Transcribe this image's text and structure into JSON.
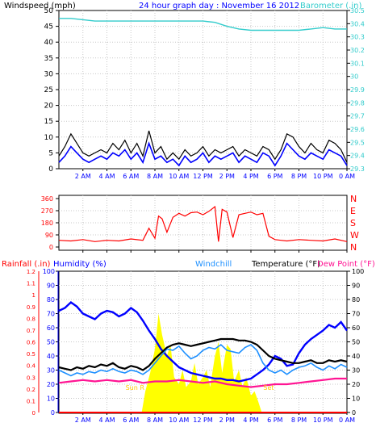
{
  "top": {
    "left_label": "Windspeed (mph)",
    "center_label": "24 hour graph day : November 16 2012",
    "right_label": "Barometer (.in)",
    "y_ticks": [
      "0",
      "5",
      "10",
      "15",
      "20",
      "25",
      "30",
      "35",
      "40",
      "45",
      "50"
    ],
    "y2_ticks": [
      "29.3",
      "29.4",
      "29.5",
      "29.6",
      "29.7",
      "29.8",
      "29.9",
      "30",
      "30.1",
      "30.2",
      "30.3",
      "30.4",
      "30.5"
    ]
  },
  "direction": {
    "y_ticks": [
      "0",
      "90",
      "180",
      "270",
      "360"
    ],
    "compass": [
      "N",
      "W",
      "S",
      "E",
      "N"
    ]
  },
  "bottom": {
    "rain_label": "Rainfall (.in)",
    "humidity_label": "Humidity (%)",
    "windchill_label": "Windchill",
    "temperature_label": "Temperature (°F)",
    "dewpoint_label": "Dew Point (°F)",
    "rain_ticks": [
      "0",
      "0.1",
      "0.2",
      "0.3",
      "0.4",
      "0.5",
      "0.6",
      "0.7",
      "0.8",
      "0.9",
      "1",
      "1.1",
      "1.2"
    ],
    "humidity_ticks": [
      "0",
      "10",
      "20",
      "30",
      "40",
      "50",
      "60",
      "70",
      "80",
      "90",
      "100"
    ],
    "temp_ticks": [
      "0",
      "10",
      "20",
      "30",
      "40",
      "50",
      "60",
      "70",
      "80",
      "90",
      "100"
    ],
    "sunrise_label": "Sun R",
    "sunset_label": "Set"
  },
  "x_tick_labels": [
    "2 AM",
    "4 AM",
    "6 AM",
    "8 AM",
    "10 AM",
    "12 PM",
    "2 PM",
    "4 PM",
    "6 PM",
    "8 PM",
    "10 PM",
    "0 AM"
  ],
  "colors": {
    "barometer": "#33cccc",
    "wind_avg": "#0000ff",
    "wind_gust": "#000000",
    "direction": "#ff0000",
    "rain": "#ff0000",
    "humidity": "#0000ff",
    "windchill": "#1e90ff",
    "temperature": "#000000",
    "dewpoint": "#ff1493",
    "solar": "#ffff00",
    "text": "#0000ff"
  },
  "chart_data": [
    {
      "type": "line",
      "title": "24 hour graph day : November 16 2012",
      "ylabel": "Windspeed (mph)",
      "y2label": "Barometer (.in)",
      "xlim": [
        0,
        24
      ],
      "ylim": [
        0,
        50
      ],
      "y2lim": [
        29.3,
        30.5
      ],
      "series": [
        {
          "name": "Barometer",
          "axis": "right",
          "x": [
            0,
            1,
            2,
            3,
            4,
            5,
            6,
            7,
            8,
            9,
            10,
            11,
            12,
            13,
            14,
            15,
            16,
            17,
            18,
            19,
            20,
            21,
            22,
            23,
            24
          ],
          "values": [
            30.44,
            30.44,
            30.43,
            30.42,
            30.42,
            30.42,
            30.42,
            30.42,
            30.42,
            30.42,
            30.42,
            30.42,
            30.42,
            30.41,
            30.38,
            30.36,
            30.35,
            30.35,
            30.35,
            30.35,
            30.35,
            30.36,
            30.37,
            30.36,
            30.36
          ]
        },
        {
          "name": "Wind average",
          "axis": "left",
          "x": [
            0,
            0.5,
            1,
            1.5,
            2,
            2.5,
            3,
            3.5,
            4,
            4.5,
            5,
            5.5,
            6,
            6.5,
            7,
            7.5,
            8,
            8.5,
            9,
            9.5,
            10,
            10.5,
            11,
            11.5,
            12,
            12.5,
            13,
            13.5,
            14,
            14.5,
            15,
            15.5,
            16,
            16.5,
            17,
            17.5,
            18,
            18.5,
            19,
            19.5,
            20,
            20.5,
            21,
            21.5,
            22,
            22.5,
            23,
            23.5,
            24
          ],
          "values": [
            2,
            4,
            7,
            5,
            3,
            2,
            3,
            4,
            3,
            5,
            4,
            6,
            3,
            5,
            2,
            8,
            3,
            4,
            2,
            3,
            1,
            4,
            2,
            3,
            5,
            2,
            4,
            3,
            4,
            5,
            2,
            4,
            3,
            2,
            5,
            4,
            1,
            4,
            8,
            6,
            4,
            3,
            5,
            4,
            3,
            6,
            5,
            4,
            1
          ]
        },
        {
          "name": "Wind gust",
          "axis": "left",
          "x": [
            0,
            0.5,
            1,
            1.5,
            2,
            2.5,
            3,
            3.5,
            4,
            4.5,
            5,
            5.5,
            6,
            6.5,
            7,
            7.5,
            8,
            8.5,
            9,
            9.5,
            10,
            10.5,
            11,
            11.5,
            12,
            12.5,
            13,
            13.5,
            14,
            14.5,
            15,
            15.5,
            16,
            16.5,
            17,
            17.5,
            18,
            18.5,
            19,
            19.5,
            20,
            20.5,
            21,
            21.5,
            22,
            22.5,
            23,
            23.5,
            24
          ],
          "values": [
            4,
            7,
            11,
            8,
            5,
            4,
            5,
            6,
            5,
            8,
            6,
            9,
            5,
            8,
            4,
            12,
            5,
            7,
            3,
            5,
            3,
            6,
            4,
            5,
            7,
            4,
            6,
            5,
            6,
            7,
            4,
            6,
            5,
            4,
            7,
            6,
            3,
            6,
            11,
            10,
            7,
            5,
            8,
            6,
            5,
            9,
            8,
            6,
            2
          ]
        }
      ]
    },
    {
      "type": "line",
      "ylabel": "Wind direction",
      "xlim": [
        0,
        24
      ],
      "ylim": [
        0,
        360
      ],
      "series": [
        {
          "name": "Direction",
          "x": [
            0,
            1,
            2,
            3,
            4,
            5,
            6,
            7,
            7.5,
            8,
            8.3,
            8.6,
            9,
            9.5,
            10,
            10.5,
            11,
            11.5,
            12,
            12.5,
            13,
            13.3,
            13.6,
            14,
            14.5,
            15,
            15.5,
            16,
            16.5,
            17,
            17.5,
            18,
            18.5,
            19,
            20,
            21,
            22,
            23,
            24
          ],
          "values": [
            50,
            45,
            55,
            40,
            50,
            45,
            60,
            50,
            140,
            65,
            230,
            210,
            110,
            220,
            250,
            230,
            255,
            260,
            240,
            265,
            300,
            40,
            280,
            260,
            70,
            240,
            250,
            260,
            240,
            250,
            80,
            55,
            50,
            45,
            55,
            50,
            45,
            60,
            40
          ]
        }
      ]
    },
    {
      "type": "line",
      "ylabel": "Temperature (°F)",
      "xlim": [
        0,
        24
      ],
      "ylim": [
        0,
        100
      ],
      "series": [
        {
          "name": "Humidity",
          "x": [
            0,
            0.5,
            1,
            1.5,
            2,
            2.5,
            3,
            3.5,
            4,
            4.5,
            5,
            5.5,
            6,
            6.5,
            7,
            7.5,
            8,
            8.5,
            9,
            9.5,
            10,
            10.5,
            11,
            11.5,
            12,
            12.5,
            13,
            13.5,
            14,
            14.5,
            15,
            15.5,
            16,
            16.5,
            17,
            17.5,
            18,
            18.5,
            19,
            19.5,
            20,
            20.5,
            21,
            21.5,
            22,
            22.5,
            23,
            23.5,
            24
          ],
          "values": [
            72,
            74,
            78,
            75,
            70,
            68,
            66,
            70,
            72,
            71,
            68,
            70,
            74,
            71,
            65,
            58,
            52,
            45,
            40,
            36,
            32,
            30,
            28,
            27,
            26,
            25,
            24,
            24,
            23,
            23,
            22,
            23,
            24,
            27,
            30,
            34,
            40,
            38,
            33,
            34,
            42,
            48,
            52,
            55,
            58,
            62,
            60,
            64,
            58
          ]
        },
        {
          "name": "Windchill",
          "x": [
            0,
            0.5,
            1,
            1.5,
            2,
            2.5,
            3,
            3.5,
            4,
            4.5,
            5,
            5.5,
            6,
            6.5,
            7,
            7.5,
            8,
            8.5,
            9,
            9.5,
            10,
            10.5,
            11,
            11.5,
            12,
            12.5,
            13,
            13.5,
            14,
            14.5,
            15,
            15.5,
            16,
            16.5,
            17,
            17.5,
            18,
            18.5,
            19,
            19.5,
            20,
            20.5,
            21,
            21.5,
            22,
            22.5,
            23,
            23.5,
            24
          ],
          "values": [
            30,
            28,
            26,
            28,
            27,
            29,
            28,
            30,
            29,
            31,
            29,
            28,
            30,
            29,
            27,
            30,
            35,
            40,
            45,
            44,
            47,
            42,
            38,
            40,
            44,
            46,
            45,
            48,
            44,
            43,
            42,
            46,
            48,
            44,
            35,
            30,
            28,
            30,
            27,
            30,
            32,
            33,
            35,
            32,
            30,
            33,
            31,
            34,
            32
          ]
        },
        {
          "name": "Temperature",
          "x": [
            0,
            0.5,
            1,
            1.5,
            2,
            2.5,
            3,
            3.5,
            4,
            4.5,
            5,
            5.5,
            6,
            6.5,
            7,
            7.5,
            8,
            8.5,
            9,
            9.5,
            10,
            10.5,
            11,
            11.5,
            12,
            12.5,
            13,
            13.5,
            14,
            14.5,
            15,
            15.5,
            16,
            16.5,
            17,
            17.5,
            18,
            18.5,
            19,
            19.5,
            20,
            20.5,
            21,
            21.5,
            22,
            22.5,
            23,
            23.5,
            24
          ],
          "values": [
            32,
            31,
            30,
            32,
            31,
            33,
            32,
            34,
            33,
            35,
            32,
            31,
            33,
            32,
            30,
            33,
            38,
            42,
            46,
            48,
            49,
            48,
            47,
            48,
            49,
            50,
            51,
            52,
            52,
            52,
            51,
            51,
            50,
            48,
            44,
            40,
            38,
            37,
            36,
            35,
            35,
            36,
            37,
            35,
            35,
            37,
            36,
            37,
            36
          ]
        },
        {
          "name": "Dew Point",
          "x": [
            0,
            1,
            2,
            3,
            4,
            5,
            6,
            7,
            8,
            9,
            10,
            11,
            12,
            13,
            14,
            15,
            16,
            17,
            18,
            19,
            20,
            21,
            22,
            23,
            24
          ],
          "values": [
            21,
            22,
            23,
            22,
            23,
            22,
            23,
            21,
            22,
            22,
            23,
            22,
            21,
            22,
            20,
            19,
            18,
            19,
            20,
            20,
            21,
            22,
            23,
            24,
            24
          ]
        },
        {
          "name": "Solar",
          "x": [
            6.9,
            7.2,
            7.6,
            8,
            8.3,
            8.6,
            9,
            9.3,
            9.6,
            10,
            10.3,
            10.6,
            11,
            11.3,
            11.6,
            12,
            12.3,
            12.6,
            13,
            13.3,
            13.6,
            14,
            14.3,
            14.6,
            15,
            15.3,
            15.6,
            16,
            16.3,
            16.6,
            16.9
          ],
          "values": [
            0,
            15,
            28,
            45,
            70,
            55,
            40,
            48,
            25,
            20,
            30,
            18,
            22,
            35,
            20,
            25,
            30,
            18,
            40,
            50,
            28,
            48,
            45,
            22,
            30,
            18,
            25,
            12,
            15,
            8,
            0
          ]
        },
        {
          "name": "Rainfall",
          "x": [
            0,
            24
          ],
          "values": [
            0,
            0
          ]
        }
      ]
    }
  ]
}
